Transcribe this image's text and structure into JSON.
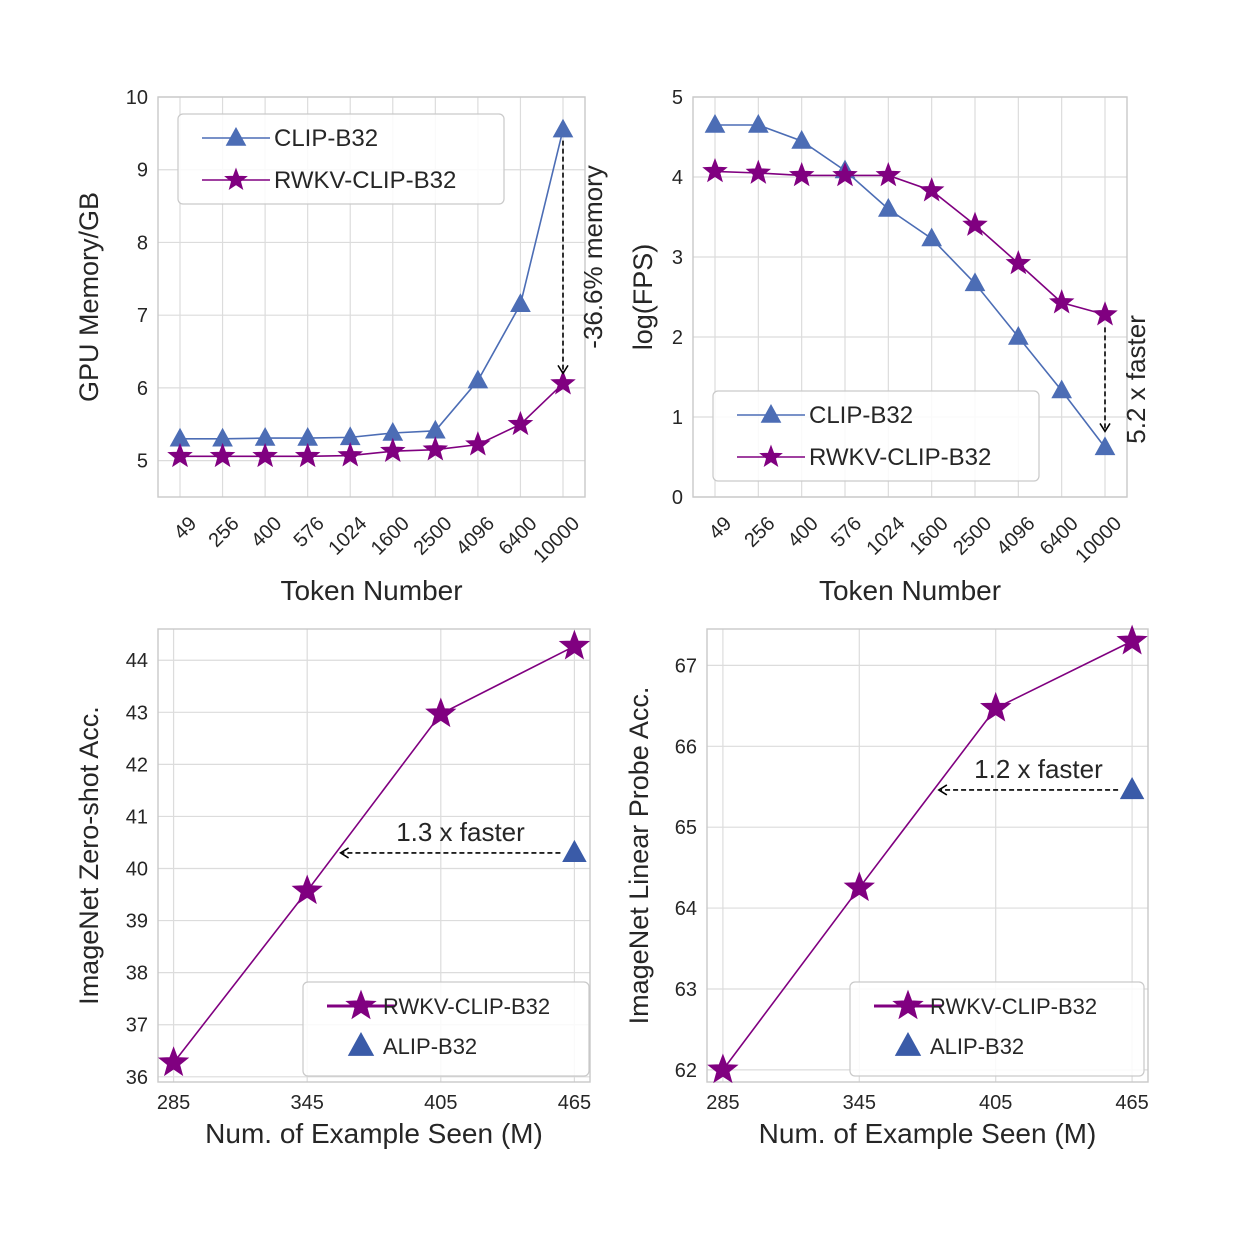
{
  "colors": {
    "clip": "#4c6db5",
    "rwkv": "#800080",
    "alip": "#3a5ba8",
    "grid": "#dcdcdc",
    "frame": "#c9c9c9",
    "annotation": "#000000"
  },
  "chart_data": [
    {
      "type": "line",
      "xlabel": "Token Number",
      "ylabel": "GPU Memory/GB",
      "categories": [
        "49",
        "256",
        "400",
        "576",
        "1024",
        "1600",
        "2500",
        "4096",
        "6400",
        "10000"
      ],
      "ylim": [
        4.5,
        10
      ],
      "yticks": [
        "5",
        "6",
        "7",
        "8",
        "9",
        "10"
      ],
      "grid": true,
      "legend_position": "top-left",
      "series": [
        {
          "name": "CLIP-B32",
          "marker": "triangle",
          "values": [
            5.3,
            5.3,
            5.31,
            5.31,
            5.32,
            5.38,
            5.41,
            6.1,
            7.15,
            9.55
          ]
        },
        {
          "name": "RWKV-CLIP-B32",
          "marker": "star",
          "values": [
            5.06,
            5.06,
            5.06,
            5.06,
            5.07,
            5.13,
            5.15,
            5.22,
            5.5,
            6.06
          ]
        }
      ],
      "annotation": {
        "text": "-36.6% memory",
        "arrow": {
          "x": "10000",
          "from": 9.4,
          "to": 6.2
        }
      }
    },
    {
      "type": "line",
      "xlabel": "Token Number",
      "ylabel": "log(FPS)",
      "categories": [
        "49",
        "256",
        "400",
        "576",
        "1024",
        "1600",
        "2500",
        "4096",
        "6400",
        "10000"
      ],
      "ylim": [
        0,
        5
      ],
      "yticks": [
        "0",
        "1",
        "2",
        "3",
        "4",
        "5"
      ],
      "grid": true,
      "legend_position": "bottom-left",
      "series": [
        {
          "name": "CLIP-B32",
          "marker": "triangle",
          "values": [
            4.65,
            4.65,
            4.45,
            4.08,
            3.6,
            3.23,
            2.67,
            2.0,
            1.33,
            0.62
          ]
        },
        {
          "name": "RWKV-CLIP-B32",
          "marker": "star",
          "values": [
            4.07,
            4.05,
            4.02,
            4.02,
            4.02,
            3.83,
            3.4,
            2.92,
            2.43,
            2.28
          ]
        }
      ],
      "annotation": {
        "text": "5.2 x faster",
        "arrow": {
          "x": "10000",
          "from": 2.12,
          "to": 0.82
        }
      }
    },
    {
      "type": "line",
      "xlabel": "Num. of Example Seen (M)",
      "ylabel": "ImageNet Zero-shot Acc.",
      "x": [
        285,
        345,
        405,
        465
      ],
      "xlim": [
        278,
        472
      ],
      "ylim": [
        35.9,
        44.6
      ],
      "xticks": [
        "285",
        "345",
        "405",
        "465"
      ],
      "yticks": [
        "36",
        "37",
        "38",
        "39",
        "40",
        "41",
        "42",
        "43",
        "44"
      ],
      "grid": true,
      "legend_position": "bottom-right",
      "series": [
        {
          "name": "RWKV-CLIP-B32",
          "marker": "star",
          "x": [
            285,
            345,
            405,
            465
          ],
          "values": [
            36.27,
            39.57,
            42.97,
            44.27
          ]
        },
        {
          "name": "ALIP-B32",
          "marker": "triangle",
          "x": [
            465
          ],
          "values": [
            40.3
          ]
        }
      ],
      "annotation": {
        "text": "1.3 x faster",
        "arrow": {
          "y": 40.3,
          "from": 465,
          "to": 360
        }
      }
    },
    {
      "type": "line",
      "xlabel": "Num. of Example Seen (M)",
      "ylabel": "ImageNet Linear Probe Acc.",
      "x": [
        285,
        345,
        405,
        465
      ],
      "xlim": [
        278,
        472
      ],
      "ylim": [
        61.85,
        67.45
      ],
      "xticks": [
        "285",
        "345",
        "405",
        "465"
      ],
      "yticks": [
        "62",
        "63",
        "64",
        "65",
        "66",
        "67"
      ],
      "grid": true,
      "legend_position": "bottom-right",
      "series": [
        {
          "name": "RWKV-CLIP-B32",
          "marker": "star",
          "x": [
            285,
            345,
            405,
            465
          ],
          "values": [
            62.0,
            64.25,
            66.47,
            67.3
          ]
        },
        {
          "name": "ALIP-B32",
          "marker": "triangle",
          "x": [
            465
          ],
          "values": [
            65.46
          ]
        }
      ],
      "annotation": {
        "text": "1.2 x faster",
        "arrow": {
          "y": 65.46,
          "from": 465,
          "to": 380
        }
      }
    }
  ]
}
